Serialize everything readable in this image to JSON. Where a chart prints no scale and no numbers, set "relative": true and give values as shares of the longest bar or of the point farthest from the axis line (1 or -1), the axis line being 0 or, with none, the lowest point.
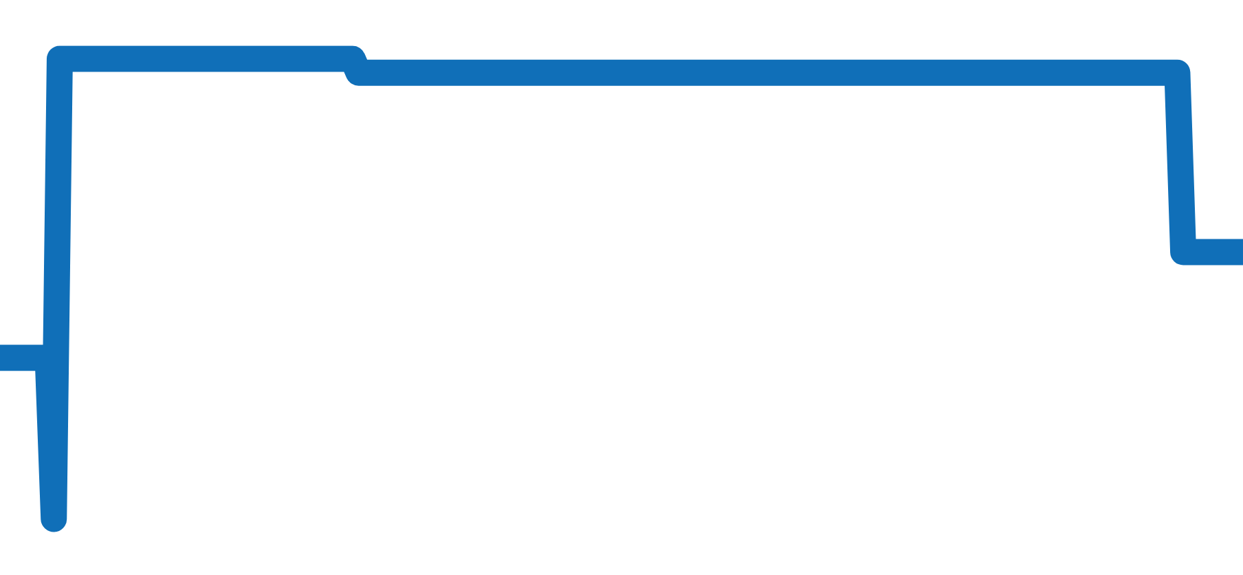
{
  "chart_data": {
    "type": "line",
    "relative": true,
    "color": "#106fb8",
    "categories": [
      null,
      null,
      null,
      null,
      null,
      null,
      null,
      null,
      null,
      null,
      null,
      null,
      null,
      null,
      null,
      null,
      null,
      null,
      null,
      null,
      null,
      null,
      null,
      null,
      null,
      null,
      null,
      null,
      null,
      null,
      null,
      null,
      null,
      null,
      null,
      null,
      null,
      null,
      null,
      null,
      null,
      null,
      null,
      null,
      null,
      null,
      null,
      null,
      null,
      null,
      null,
      null,
      null,
      null,
      null,
      null,
      null,
      null,
      null,
      null,
      null,
      null,
      null,
      null,
      null,
      null,
      null,
      null,
      null,
      null,
      null,
      null,
      null,
      null,
      null,
      null,
      null,
      null,
      null,
      null,
      null,
      null,
      null,
      null,
      null,
      null,
      null,
      null,
      null,
      null,
      null,
      null,
      null,
      null,
      null,
      null,
      null,
      null,
      null,
      null,
      null,
      null,
      null,
      null,
      null,
      null,
      null,
      null,
      null,
      null,
      null,
      null,
      null,
      null,
      null,
      null,
      null,
      null,
      null,
      null,
      null,
      null,
      null,
      null,
      null,
      null,
      null,
      null,
      null,
      null,
      null,
      null,
      null,
      null,
      null,
      null,
      null,
      null,
      null,
      null,
      null,
      null,
      null,
      null,
      null,
      null,
      null,
      null,
      null,
      null,
      null,
      null,
      null,
      null,
      null,
      null,
      null,
      null,
      null,
      null,
      null,
      null,
      null,
      null,
      null,
      null,
      null,
      null,
      null,
      null,
      null,
      null,
      null,
      null,
      null,
      null,
      null,
      null,
      null,
      null,
      null,
      null,
      null,
      null,
      null,
      null,
      null,
      null,
      null,
      null,
      null,
      null,
      null,
      null,
      null,
      null,
      null,
      null,
      null,
      null,
      null,
      null,
      null,
      null,
      null,
      null,
      null,
      null,
      null
    ],
    "values": [
      0.35,
      0.35,
      0.35,
      0.35,
      0.35,
      0.35,
      0.35,
      0.35,
      0.35,
      0,
      1,
      1,
      1,
      1,
      1,
      1,
      1,
      1,
      1,
      1,
      1,
      1,
      1,
      1,
      1,
      1,
      1,
      1,
      1,
      1,
      1,
      1,
      1,
      1,
      1,
      1,
      1,
      1,
      1,
      1,
      1,
      1,
      1,
      1,
      1,
      1,
      1,
      1,
      1,
      1,
      1,
      1,
      1,
      1,
      1,
      1,
      1,
      1,
      1,
      1,
      0.97,
      0.97,
      0.97,
      0.97,
      0.97,
      0.97,
      0.97,
      0.97,
      0.97,
      0.97,
      0.97,
      0.97,
      0.97,
      0.97,
      0.97,
      0.97,
      0.97,
      0.97,
      0.97,
      0.97,
      0.97,
      0.97,
      0.97,
      0.97,
      0.97,
      0.97,
      0.97,
      0.97,
      0.97,
      0.97,
      0.97,
      0.97,
      0.97,
      0.97,
      0.97,
      0.97,
      0.97,
      0.97,
      0.97,
      0.97,
      0.97,
      0.97,
      0.97,
      0.97,
      0.97,
      0.97,
      0.97,
      0.97,
      0.97,
      0.97,
      0.97,
      0.97,
      0.97,
      0.97,
      0.97,
      0.97,
      0.97,
      0.97,
      0.97,
      0.97,
      0.97,
      0.97,
      0.97,
      0.97,
      0.97,
      0.97,
      0.97,
      0.97,
      0.97,
      0.97,
      0.97,
      0.97,
      0.97,
      0.97,
      0.97,
      0.97,
      0.97,
      0.97,
      0.97,
      0.97,
      0.97,
      0.97,
      0.97,
      0.97,
      0.97,
      0.97,
      0.97,
      0.97,
      0.97,
      0.97,
      0.97,
      0.97,
      0.97,
      0.97,
      0.97,
      0.97,
      0.97,
      0.97,
      0.97,
      0.97,
      0.97,
      0.97,
      0.97,
      0.97,
      0.97,
      0.97,
      0.97,
      0.97,
      0.97,
      0.97,
      0.97,
      0.97,
      0.97,
      0.97,
      0.97,
      0.97,
      0.97,
      0.97,
      0.97,
      0.97,
      0.97,
      0.97,
      0.97,
      0.97,
      0.97,
      0.97,
      0.97,
      0.97,
      0.97,
      0.97,
      0.97,
      0.97,
      0.97,
      0.97,
      0.97,
      0.97,
      0.97,
      0.97,
      0.58,
      0.58,
      0.58,
      0.58,
      0.58,
      0.58,
      0.58,
      0.58,
      0.58,
      0.58,
      0.58
    ]
  }
}
